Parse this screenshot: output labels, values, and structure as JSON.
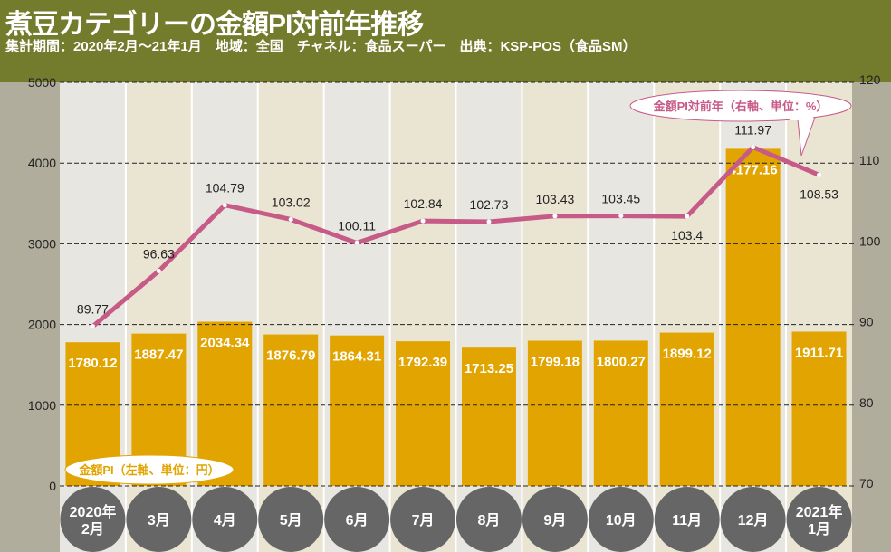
{
  "header": {
    "title": "煮豆カテゴリーの金額PI対前年推移",
    "subtitle": "集計期間：2020年2月～21年1月　地域：全国　チャネル：食品スーパー　出典：KSP-POS（食品SM）"
  },
  "chart_data": {
    "type": "bar+line",
    "categories": [
      [
        "2020年",
        "2月"
      ],
      [
        "3月"
      ],
      [
        "4月"
      ],
      [
        "5月"
      ],
      [
        "6月"
      ],
      [
        "7月"
      ],
      [
        "8月"
      ],
      [
        "9月"
      ],
      [
        "10月"
      ],
      [
        "11月"
      ],
      [
        "12月"
      ],
      [
        "2021年",
        "1月"
      ]
    ],
    "series": [
      {
        "name": "金額PI（左軸、単位：円）",
        "type": "bar",
        "axis": "left",
        "color": "#e2a400",
        "values": [
          1780.12,
          1887.47,
          2034.34,
          1876.79,
          1864.31,
          1792.39,
          1713.25,
          1799.18,
          1800.27,
          1899.12,
          4177.16,
          1911.71
        ]
      },
      {
        "name": "金額PI対前年（右軸、単位：%）",
        "type": "line",
        "axis": "right",
        "color": "#c75b88",
        "values": [
          89.77,
          96.63,
          104.79,
          103.02,
          100.11,
          102.84,
          102.73,
          103.43,
          103.45,
          103.4,
          111.97,
          108.53
        ]
      }
    ],
    "left_axis": {
      "range": [
        0,
        5000
      ],
      "ticks": [
        "0",
        "1000",
        "2000",
        "3000",
        "4000",
        "5000"
      ]
    },
    "right_axis": {
      "range": [
        70,
        120
      ],
      "ticks": [
        "70",
        "80",
        "90",
        "100",
        "110",
        "120"
      ]
    },
    "grid": "dashed horizontal",
    "colors": {
      "header": "#737b2c",
      "band": "#b1ad9d",
      "col_a": "#e8e6e1",
      "col_b": "#eae4d2",
      "month_circle": "#666666"
    }
  }
}
